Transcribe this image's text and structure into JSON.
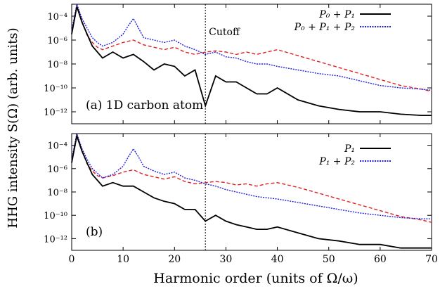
{
  "chart_data": {
    "type": "line",
    "ylabel": "HHG intensity S(Ω) (arb. units)",
    "xlabel": "Harmonic order (units of Ω/ω)",
    "xlim": [
      0,
      70
    ],
    "ylim_log10": [
      -13,
      -3
    ],
    "x_ticks": [
      "0",
      "10",
      "20",
      "30",
      "40",
      "50",
      "60",
      "70"
    ],
    "y_ticks": [
      {
        "exp": -4,
        "label": "10⁻⁴"
      },
      {
        "exp": -6,
        "label": "10⁻⁶"
      },
      {
        "exp": -8,
        "label": "10⁻⁸"
      },
      {
        "exp": -10,
        "label": "10⁻¹⁰"
      },
      {
        "exp": -12,
        "label": "10⁻¹²"
      }
    ],
    "cutoff_x": 26,
    "panels": [
      {
        "annotation": "(a) 1D carbon atom",
        "cutoff_label": "Cutoff",
        "series": [
          {
            "name": "P₀ + P₁",
            "color": "#000000",
            "style": "solid",
            "x": [
              0,
              1,
              2,
              3,
              4,
              5,
              6,
              8,
              10,
              12,
              14,
              16,
              18,
              20,
              22,
              24,
              26,
              28,
              30,
              32,
              34,
              36,
              38,
              40,
              44,
              48,
              52,
              56,
              60,
              64,
              68,
              70
            ],
            "log10_y": [
              -5.5,
              -3.2,
              -4.5,
              -5.5,
              -6.5,
              -7.0,
              -7.5,
              -7.0,
              -7.5,
              -7.2,
              -7.8,
              -8.5,
              -8.0,
              -8.2,
              -9.0,
              -8.5,
              -11.5,
              -9.0,
              -9.5,
              -9.5,
              -10.0,
              -10.5,
              -10.5,
              -10.0,
              -11.0,
              -11.5,
              -11.8,
              -12.0,
              -12.0,
              -12.2,
              -12.3,
              -12.3
            ]
          },
          {
            "name": "P₀ + P₁ + P₂",
            "color": "#1f1fe0",
            "style": "dotted",
            "x": [
              0,
              1,
              2,
              3,
              4,
              5,
              6,
              8,
              10,
              11,
              12,
              13,
              14,
              16,
              18,
              20,
              22,
              24,
              26,
              28,
              30,
              32,
              34,
              36,
              38,
              40,
              44,
              48,
              52,
              56,
              60,
              64,
              68,
              70
            ],
            "log10_y": [
              -5.2,
              -3.0,
              -4.2,
              -5.0,
              -5.8,
              -6.2,
              -6.5,
              -6.2,
              -5.5,
              -4.8,
              -4.2,
              -5.0,
              -5.8,
              -6.0,
              -6.2,
              -6.0,
              -6.5,
              -6.8,
              -7.2,
              -7.0,
              -7.4,
              -7.5,
              -7.8,
              -8.0,
              -8.0,
              -8.2,
              -8.5,
              -8.8,
              -9.0,
              -9.4,
              -9.8,
              -10.0,
              -10.1,
              -10.2
            ]
          },
          {
            "name": "",
            "color": "#e02020",
            "style": "dashed",
            "x": [
              0,
              1,
              2,
              3,
              4,
              5,
              6,
              8,
              10,
              12,
              14,
              16,
              18,
              20,
              22,
              24,
              26,
              28,
              30,
              32,
              34,
              36,
              38,
              40,
              44,
              48,
              52,
              56,
              60,
              64,
              68,
              70
            ],
            "log10_y": [
              -5.4,
              -3.1,
              -4.4,
              -5.6,
              -6.2,
              -6.6,
              -6.8,
              -6.5,
              -6.2,
              -6.0,
              -6.4,
              -6.6,
              -6.8,
              -6.6,
              -7.0,
              -7.2,
              -7.0,
              -6.9,
              -7.0,
              -7.2,
              -7.0,
              -7.2,
              -7.0,
              -6.8,
              -7.3,
              -7.8,
              -8.3,
              -8.8,
              -9.3,
              -9.8,
              -10.1,
              -10.3
            ]
          }
        ]
      },
      {
        "annotation": "(b)",
        "series": [
          {
            "name": "P₁",
            "color": "#000000",
            "style": "solid",
            "x": [
              0,
              1,
              2,
              3,
              4,
              5,
              6,
              8,
              10,
              12,
              14,
              16,
              18,
              20,
              22,
              24,
              26,
              28,
              30,
              32,
              34,
              36,
              38,
              40,
              44,
              48,
              52,
              56,
              60,
              64,
              68,
              70
            ],
            "log10_y": [
              -5.5,
              -3.2,
              -4.5,
              -5.5,
              -6.5,
              -7.0,
              -7.5,
              -7.2,
              -7.5,
              -7.5,
              -8.0,
              -8.5,
              -8.8,
              -9.0,
              -9.5,
              -9.5,
              -10.5,
              -10.0,
              -10.5,
              -10.8,
              -11.0,
              -11.2,
              -11.2,
              -11.0,
              -11.5,
              -12.0,
              -12.2,
              -12.5,
              -12.5,
              -12.8,
              -12.8,
              -12.8
            ]
          },
          {
            "name": "P₁ + P₂",
            "color": "#1f1fe0",
            "style": "dotted",
            "x": [
              0,
              1,
              2,
              3,
              4,
              5,
              6,
              8,
              10,
              11,
              12,
              13,
              14,
              16,
              18,
              20,
              22,
              24,
              26,
              28,
              30,
              32,
              34,
              36,
              38,
              40,
              44,
              48,
              52,
              56,
              60,
              64,
              68,
              70
            ],
            "log10_y": [
              -5.2,
              -3.0,
              -4.3,
              -5.2,
              -6.0,
              -6.4,
              -6.8,
              -6.5,
              -5.8,
              -5.0,
              -4.3,
              -5.0,
              -5.8,
              -6.2,
              -6.5,
              -6.3,
              -6.8,
              -7.0,
              -7.3,
              -7.5,
              -7.8,
              -8.0,
              -8.2,
              -8.4,
              -8.5,
              -8.6,
              -8.9,
              -9.2,
              -9.5,
              -9.8,
              -10.0,
              -10.2,
              -10.3,
              -10.3
            ]
          },
          {
            "name": "",
            "color": "#e02020",
            "style": "dashed",
            "x": [
              0,
              1,
              2,
              3,
              4,
              5,
              6,
              8,
              10,
              12,
              14,
              16,
              18,
              20,
              22,
              24,
              26,
              28,
              30,
              32,
              34,
              36,
              38,
              40,
              44,
              48,
              52,
              56,
              60,
              64,
              68,
              70
            ],
            "log10_y": [
              -5.4,
              -3.1,
              -4.4,
              -5.6,
              -6.2,
              -6.6,
              -6.8,
              -6.6,
              -6.3,
              -6.1,
              -6.5,
              -6.7,
              -6.9,
              -6.7,
              -7.1,
              -7.3,
              -7.2,
              -7.1,
              -7.2,
              -7.4,
              -7.3,
              -7.5,
              -7.3,
              -7.2,
              -7.6,
              -8.1,
              -8.6,
              -9.1,
              -9.6,
              -10.1,
              -10.4,
              -10.6
            ]
          }
        ]
      }
    ]
  }
}
